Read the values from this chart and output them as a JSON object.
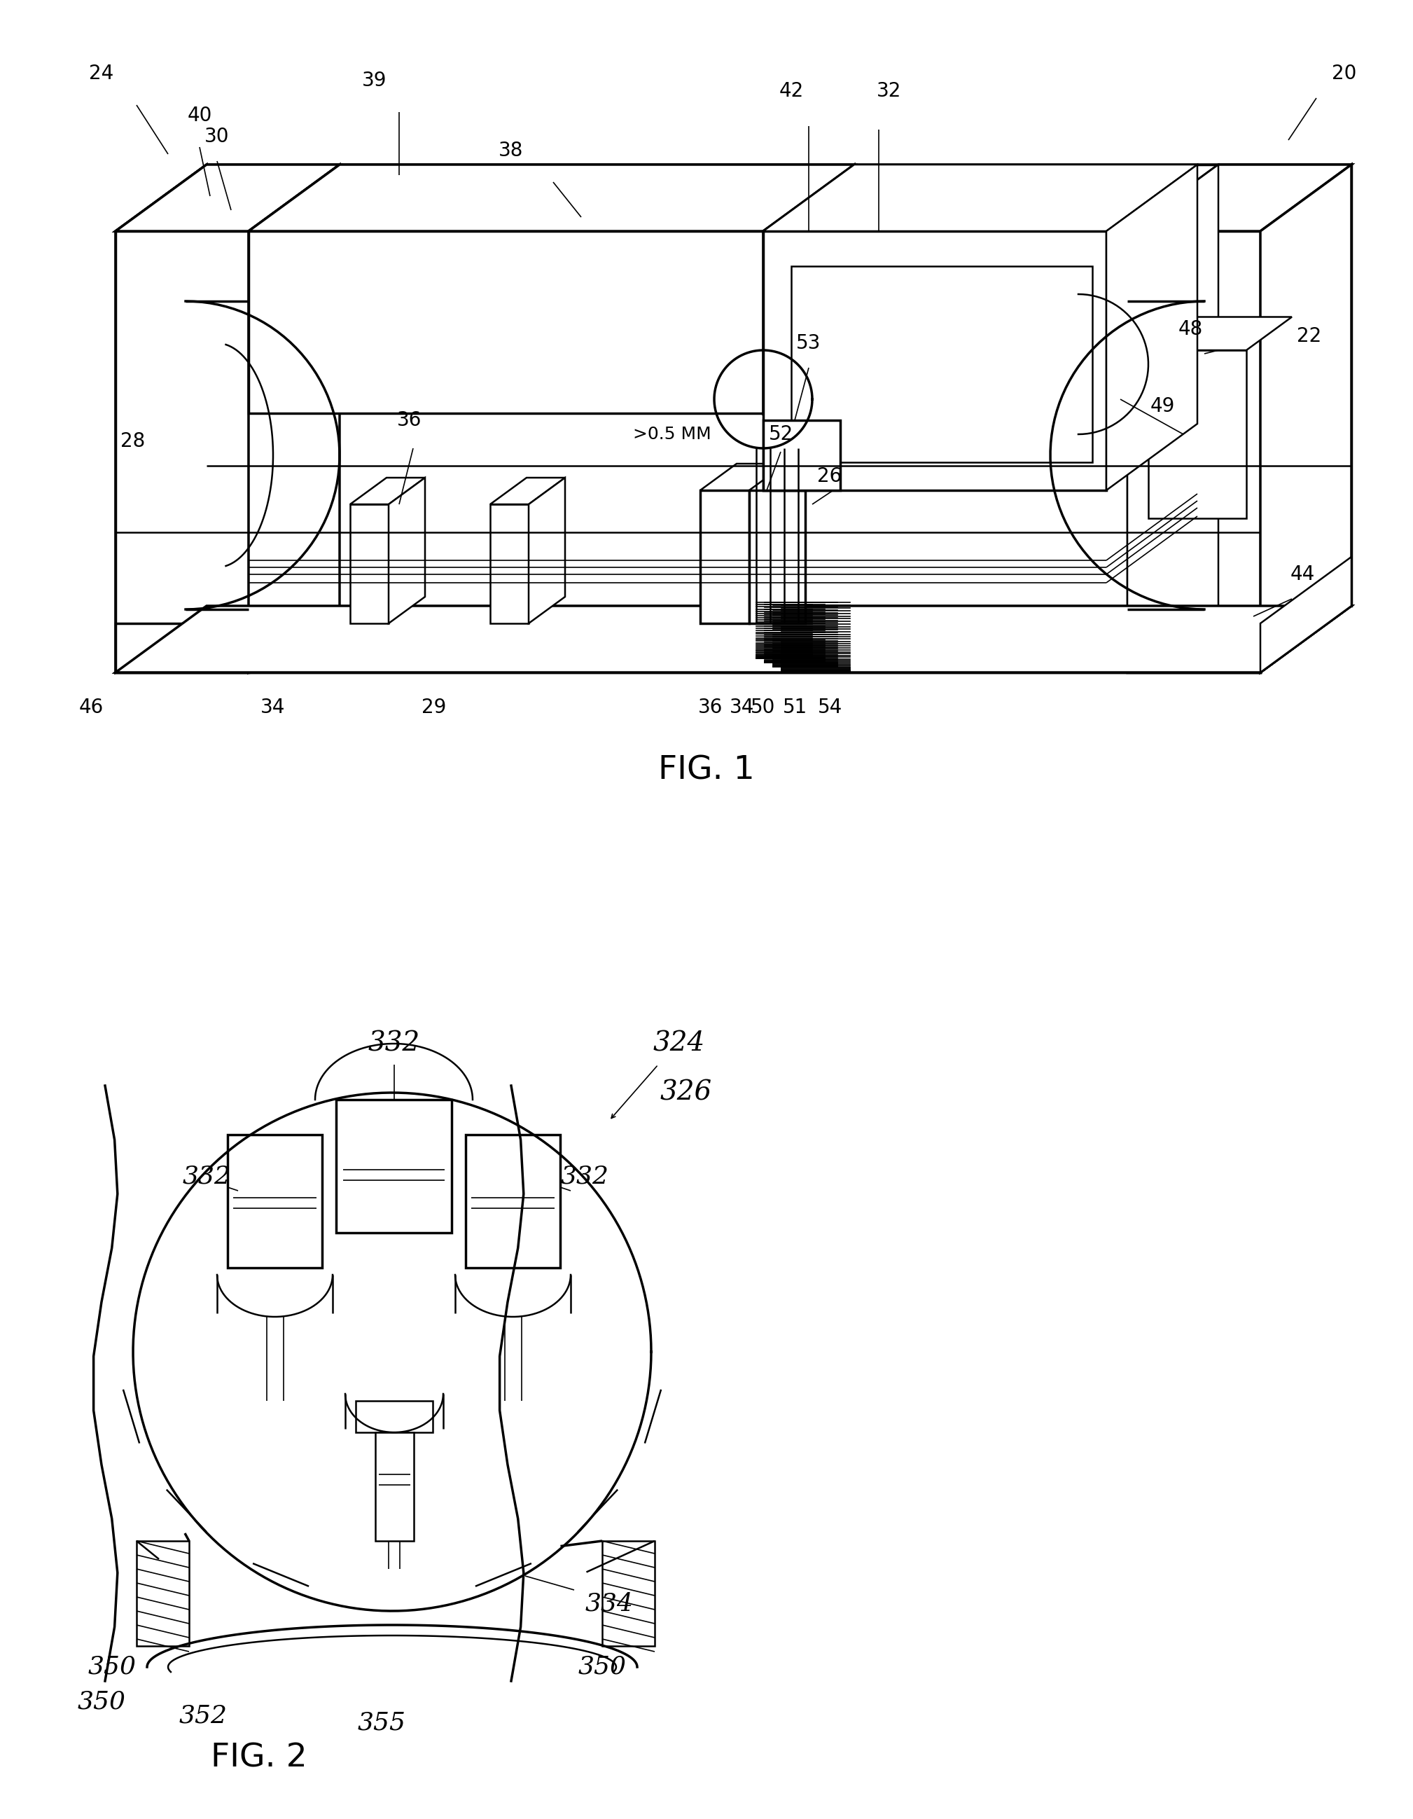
{
  "fig_width": 20.18,
  "fig_height": 25.97,
  "bg_color": "#ffffff",
  "line_color": "#000000",
  "fig1_title": "FIG. 1",
  "fig2_title": "FIG. 2"
}
